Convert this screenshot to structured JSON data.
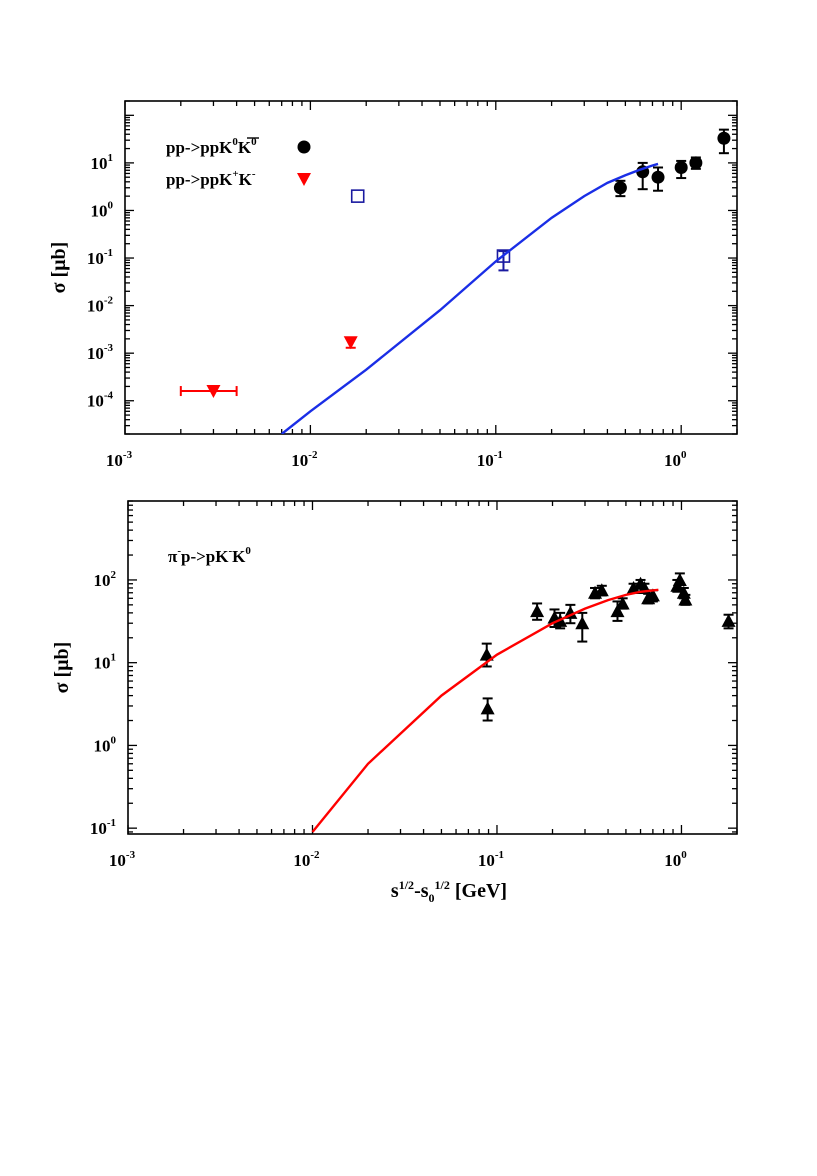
{
  "figure": {
    "x_axis_title": {
      "main": "s",
      "sup1": "1/2",
      "mid": "-s",
      "sub": "0",
      "sup2": "1/2",
      "unit": " [GeV]"
    }
  },
  "chart_data": [
    {
      "type": "scatter",
      "x_scale": "log",
      "y_scale": "log",
      "xlim": [
        0.001,
        2.0
      ],
      "ylim": [
        2e-05,
        200
      ],
      "ylabel": "σ [μb]",
      "x_tick_labels": [
        {
          "value": 0.001,
          "base": "10",
          "exp": "-3"
        },
        {
          "value": 0.01,
          "base": "10",
          "exp": "-2"
        },
        {
          "value": 0.1,
          "base": "10",
          "exp": "-1"
        },
        {
          "value": 1,
          "base": "10",
          "exp": "0"
        }
      ],
      "y_tick_labels": [
        {
          "value": 0.0001,
          "base": "10",
          "exp": "-4"
        },
        {
          "value": 0.001,
          "base": "10",
          "exp": "-3"
        },
        {
          "value": 0.01,
          "base": "10",
          "exp": "-2"
        },
        {
          "value": 0.1,
          "base": "10",
          "exp": "-1"
        },
        {
          "value": 1,
          "base": "10",
          "exp": "0"
        },
        {
          "value": 10,
          "base": "10",
          "exp": "1"
        }
      ],
      "legend": [
        {
          "label": "pp->ppK",
          "sup": "0",
          "label2": "K",
          "sup2": "0",
          "bar_over": "K",
          "marker": "circle",
          "color": "#000000"
        },
        {
          "label": "pp->ppK",
          "sup": "+",
          "label2": "K",
          "sup2": "-",
          "marker": "triangle-down",
          "color": "#ff0000"
        }
      ],
      "series": [
        {
          "name": "pp->ppK0K0bar data",
          "marker": "circle",
          "color": "#000000",
          "points": [
            {
              "x": 0.47,
              "y": 3.0,
              "ylo": 2.0,
              "yhi": 4.2
            },
            {
              "x": 0.62,
              "y": 6.5,
              "ylo": 2.8,
              "yhi": 10.0
            },
            {
              "x": 0.75,
              "y": 5.0,
              "ylo": 2.6,
              "yhi": 8.0
            },
            {
              "x": 1.0,
              "y": 8.0,
              "ylo": 4.8,
              "yhi": 11.0
            },
            {
              "x": 1.2,
              "y": 10.0,
              "ylo": 7.5,
              "yhi": 13.0
            },
            {
              "x": 1.7,
              "y": 33.0,
              "ylo": 16.0,
              "yhi": 50.0
            }
          ]
        },
        {
          "name": "pp->ppK0K0bar data (open)",
          "marker": "square-open",
          "color": "#1a1aa0",
          "points": [
            {
              "x": 0.11,
              "y": 0.11,
              "ylo": 0.055,
              "yhi": 0.14
            },
            {
              "x": 0.018,
              "y": 2.0
            }
          ]
        },
        {
          "name": "pp->ppK+K- data",
          "marker": "triangle-down",
          "color": "#ff0000",
          "points": [
            {
              "x": 0.003,
              "y": 0.00016,
              "xlo": 0.002,
              "xhi": 0.004
            },
            {
              "x": 0.0165,
              "y": 0.0017,
              "ylo": 0.0013,
              "yhi": 0.002
            }
          ]
        },
        {
          "name": "model curve",
          "type": "line",
          "color": "#1a2ee6",
          "x": [
            0.007,
            0.01,
            0.02,
            0.05,
            0.1,
            0.2,
            0.3,
            0.4,
            0.5,
            0.6,
            0.7,
            0.75
          ],
          "y": [
            2e-05,
            6e-05,
            0.00045,
            0.008,
            0.085,
            0.7,
            2.0,
            3.8,
            5.5,
            7.2,
            8.8,
            9.5
          ]
        }
      ]
    },
    {
      "type": "scatter",
      "x_scale": "log",
      "y_scale": "log",
      "xlim": [
        0.001,
        2.0
      ],
      "ylim": [
        0.085,
        900
      ],
      "ylabel": "σ [μb]",
      "annotation": {
        "pre": "π",
        "sup1": "-",
        "mid": "p->pK",
        "sup2": "-",
        "post": "K",
        "sup3": "0"
      },
      "x_tick_labels": [
        {
          "value": 0.001,
          "base": "10",
          "exp": "-3"
        },
        {
          "value": 0.01,
          "base": "10",
          "exp": "-2"
        },
        {
          "value": 0.1,
          "base": "10",
          "exp": "-1"
        },
        {
          "value": 1,
          "base": "10",
          "exp": "0"
        }
      ],
      "y_tick_labels": [
        {
          "value": 0.1,
          "base": "10",
          "exp": "-1"
        },
        {
          "value": 1,
          "base": "10",
          "exp": "0"
        },
        {
          "value": 10,
          "base": "10",
          "exp": "1"
        },
        {
          "value": 100,
          "base": "10",
          "exp": "2"
        }
      ],
      "series": [
        {
          "name": "pi-p->pK-K0 data",
          "marker": "triangle-up",
          "color": "#000000",
          "points": [
            {
              "x": 0.088,
              "y": 12.5,
              "ylo": 9.0,
              "yhi": 17.0
            },
            {
              "x": 0.089,
              "y": 2.8,
              "ylo": 2.0,
              "yhi": 3.7
            },
            {
              "x": 0.165,
              "y": 42.0,
              "ylo": 33.0,
              "yhi": 52.0
            },
            {
              "x": 0.205,
              "y": 35.0,
              "ylo": 27.0,
              "yhi": 44.0
            },
            {
              "x": 0.22,
              "y": 32.0,
              "ylo": 26.0,
              "yhi": 40.0
            },
            {
              "x": 0.25,
              "y": 40.0,
              "ylo": 30.0,
              "yhi": 50.0
            },
            {
              "x": 0.29,
              "y": 30.0,
              "ylo": 18.0,
              "yhi": 40.0
            },
            {
              "x": 0.34,
              "y": 70.0,
              "ylo": 60.0,
              "yhi": 80.0
            },
            {
              "x": 0.37,
              "y": 75.0,
              "ylo": 65.0,
              "yhi": 85.0
            },
            {
              "x": 0.45,
              "y": 42.0,
              "ylo": 32.0,
              "yhi": 55.0
            },
            {
              "x": 0.48,
              "y": 52.0,
              "ylo": 45.0,
              "yhi": 60.0
            },
            {
              "x": 0.55,
              "y": 80.0,
              "ylo": 70.0,
              "yhi": 90.0
            },
            {
              "x": 0.6,
              "y": 90.0,
              "ylo": 80.0,
              "yhi": 100.0
            },
            {
              "x": 0.63,
              "y": 80.0,
              "ylo": 70.0,
              "yhi": 90.0
            },
            {
              "x": 0.66,
              "y": 60.0,
              "ylo": 52.0,
              "yhi": 68.0
            },
            {
              "x": 0.7,
              "y": 65.0,
              "ylo": 55.0,
              "yhi": 75.0
            },
            {
              "x": 0.95,
              "y": 85.0,
              "ylo": 72.0,
              "yhi": 100.0
            },
            {
              "x": 0.98,
              "y": 100.0,
              "ylo": 80.0,
              "yhi": 120.0
            },
            {
              "x": 1.03,
              "y": 70.0,
              "ylo": 60.0,
              "yhi": 80.0
            },
            {
              "x": 1.05,
              "y": 58.0,
              "ylo": 50.0,
              "yhi": 66.0
            },
            {
              "x": 1.8,
              "y": 32.0,
              "ylo": 26.0,
              "yhi": 38.0
            }
          ]
        },
        {
          "name": "model curve",
          "type": "line",
          "color": "#ff0000",
          "x": [
            0.01,
            0.02,
            0.05,
            0.1,
            0.2,
            0.3,
            0.4,
            0.5,
            0.6,
            0.75
          ],
          "y": [
            0.09,
            0.6,
            4.0,
            12.5,
            30.0,
            45.0,
            57.0,
            66.0,
            72.0,
            76.0
          ]
        }
      ]
    }
  ]
}
